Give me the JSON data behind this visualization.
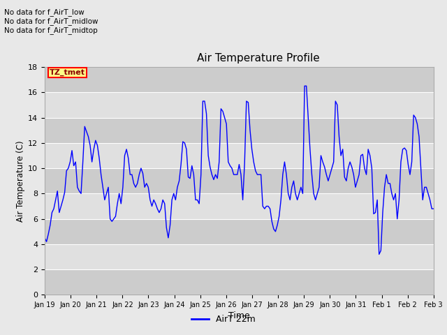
{
  "title": "Air Temperature Profile",
  "xlabel": "Time",
  "ylabel": "Air Temperature (C)",
  "legend_label": "AirT 22m",
  "no_data_texts": [
    "No data for f_AirT_low",
    "No data for f_AirT_midlow",
    "No data for f_AirT_midtop"
  ],
  "tz_tmet_label": "TZ_tmet",
  "ylim": [
    0,
    18
  ],
  "yticks": [
    0,
    2,
    4,
    6,
    8,
    10,
    12,
    14,
    16,
    18
  ],
  "line_color": "#0000ff",
  "background_color": "#e8e8e8",
  "plot_bg_color": "#e0e0e0",
  "stripe_light": "#e8e8e8",
  "stripe_dark": "#d8d8d8",
  "grid_color": "#cccccc",
  "x_labels": [
    "Jan 19",
    "Jan 20",
    "Jan 21",
    "Jan 22",
    "Jan 23",
    "Jan 24",
    "Jan 25",
    "Jan 26",
    "Jan 27",
    "Jan 28",
    "Jan 29",
    "Jan 30",
    "Jan 31",
    "Feb 1",
    "Feb 2",
    "Feb 3"
  ],
  "y_values": [
    4.5,
    4.2,
    4.8,
    5.5,
    6.5,
    6.8,
    7.5,
    8.2,
    6.5,
    7.0,
    7.5,
    8.1,
    9.8,
    10.0,
    10.5,
    11.4,
    10.2,
    10.5,
    8.5,
    8.2,
    8.0,
    10.5,
    13.3,
    12.9,
    12.5,
    11.8,
    10.5,
    11.5,
    12.2,
    11.8,
    10.8,
    9.5,
    8.5,
    7.5,
    8.0,
    8.5,
    6.0,
    5.8,
    6.0,
    6.2,
    7.2,
    8.0,
    7.2,
    8.5,
    11.0,
    11.5,
    10.8,
    9.5,
    9.5,
    8.8,
    8.5,
    8.8,
    9.5,
    10.0,
    9.6,
    8.5,
    8.8,
    8.5,
    7.5,
    7.0,
    7.5,
    7.2,
    6.8,
    6.5,
    6.8,
    7.5,
    7.2,
    5.3,
    4.5,
    5.5,
    7.5,
    8.0,
    7.5,
    8.5,
    9.0,
    10.3,
    12.1,
    12.0,
    11.5,
    9.3,
    9.2,
    10.2,
    9.5,
    7.5,
    7.5,
    7.2,
    9.5,
    15.3,
    15.3,
    14.3,
    11.0,
    10.1,
    9.5,
    9.1,
    9.5,
    9.2,
    10.5,
    14.7,
    14.5,
    14.0,
    13.5,
    10.5,
    10.2,
    10.0,
    9.5,
    9.5,
    9.5,
    10.3,
    9.5,
    7.5,
    10.4,
    15.3,
    15.2,
    13.0,
    11.5,
    10.5,
    9.8,
    9.5,
    9.5,
    9.5,
    7.0,
    6.8,
    7.0,
    7.0,
    6.8,
    5.8,
    5.2,
    5.0,
    5.5,
    6.2,
    7.5,
    9.5,
    10.5,
    9.5,
    8.0,
    7.5,
    8.5,
    9.0,
    8.0,
    7.5,
    8.0,
    8.5,
    8.0,
    16.5,
    16.5,
    14.0,
    11.5,
    9.5,
    8.0,
    7.5,
    8.0,
    8.5,
    11.0,
    10.5,
    10.1,
    9.5,
    9.0,
    9.5,
    10.0,
    10.5,
    15.3,
    15.0,
    12.5,
    11.0,
    11.5,
    9.3,
    9.0,
    10.0,
    10.5,
    10.1,
    9.5,
    8.5,
    9.0,
    9.5,
    11.0,
    11.1,
    10.0,
    9.5,
    11.5,
    11.0,
    10.0,
    6.4,
    6.5,
    7.5,
    3.2,
    3.5,
    6.5,
    8.5,
    9.5,
    8.8,
    8.8,
    8.0,
    7.5,
    8.0,
    6.0,
    7.5,
    10.5,
    11.5,
    11.6,
    11.4,
    10.3,
    9.5,
    10.5,
    14.2,
    14.0,
    13.5,
    12.5,
    10.0,
    7.5,
    8.5,
    8.5,
    8.0,
    7.5,
    6.8,
    6.8
  ]
}
